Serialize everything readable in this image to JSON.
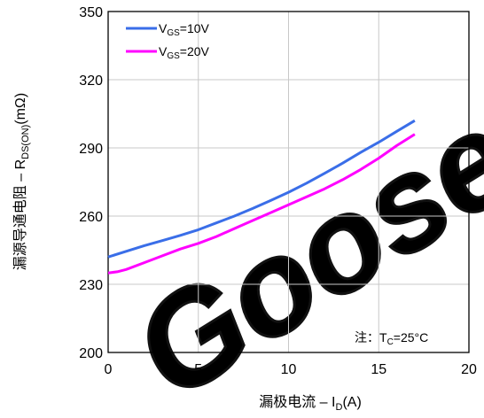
{
  "chart_data": {
    "type": "line",
    "x_ticks": [
      0,
      5,
      10,
      15,
      20
    ],
    "y_ticks": [
      200,
      230,
      260,
      290,
      320,
      350
    ],
    "xlim": [
      0,
      20
    ],
    "ylim": [
      200,
      350
    ],
    "grid": true,
    "legend_position": "top-left",
    "xlabel": {
      "main": "漏极电流 – I",
      "sub": "D",
      "tail": "(A)"
    },
    "ylabel": {
      "main": "漏源导通电阻 – R",
      "sub": "DS(ON)",
      "tail": "(mΩ)"
    },
    "annotation": {
      "prefix": "注：T",
      "sub": "C",
      "tail": "=25°C"
    },
    "series": [
      {
        "legend": {
          "main": "V",
          "sub": "GS",
          "tail": "=10V"
        },
        "color": "#3a6ee8",
        "points": [
          [
            0,
            242
          ],
          [
            1,
            244.5
          ],
          [
            2,
            247
          ],
          [
            3,
            249.2
          ],
          [
            4,
            251.5
          ],
          [
            5,
            254
          ],
          [
            6,
            257
          ],
          [
            7,
            260
          ],
          [
            8,
            263.3
          ],
          [
            9,
            266.8
          ],
          [
            10,
            270.5
          ],
          [
            11,
            274.5
          ],
          [
            12,
            278.8
          ],
          [
            13,
            283.3
          ],
          [
            14,
            288
          ],
          [
            15,
            292.5
          ],
          [
            16,
            297.3
          ],
          [
            17,
            302
          ]
        ]
      },
      {
        "legend": {
          "main": "V",
          "sub": "GS",
          "tail": "=20V"
        },
        "color": "#ff00ff",
        "points": [
          [
            0,
            235
          ],
          [
            0.5,
            235.5
          ],
          [
            1,
            236.5
          ],
          [
            2,
            239.5
          ],
          [
            3,
            242.5
          ],
          [
            4,
            245.5
          ],
          [
            5,
            248
          ],
          [
            6,
            251
          ],
          [
            7,
            254.5
          ],
          [
            8,
            258
          ],
          [
            9,
            261.5
          ],
          [
            10,
            265
          ],
          [
            11,
            268.5
          ],
          [
            12,
            272
          ],
          [
            13,
            276
          ],
          [
            14,
            280.5
          ],
          [
            15,
            285.5
          ],
          [
            16,
            291
          ],
          [
            17,
            296
          ]
        ]
      }
    ]
  },
  "watermark": "Goose"
}
